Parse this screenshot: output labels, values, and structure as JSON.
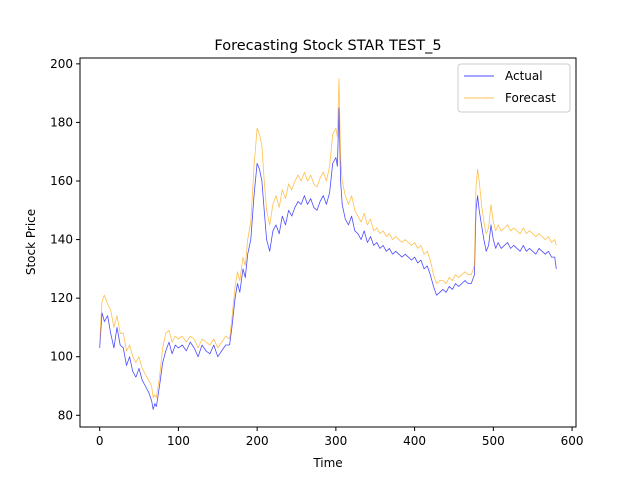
{
  "chart_data": {
    "type": "line",
    "title": "Forecasting Stock STAR TEST_5",
    "xlabel": "Time",
    "ylabel": "Stock Price",
    "xlim": [
      -25,
      605
    ],
    "ylim": [
      76,
      202
    ],
    "xticks": [
      0,
      100,
      200,
      300,
      400,
      500,
      600
    ],
    "yticks": [
      80,
      100,
      120,
      140,
      160,
      180,
      200
    ],
    "grid": false,
    "legend_position": "top-right",
    "series": [
      {
        "name": "Actual",
        "color": "#0000ff",
        "points": [
          [
            0,
            103
          ],
          [
            3,
            115
          ],
          [
            6,
            112
          ],
          [
            10,
            114
          ],
          [
            14,
            108
          ],
          [
            18,
            103
          ],
          [
            22,
            110
          ],
          [
            26,
            104
          ],
          [
            30,
            103
          ],
          [
            34,
            97
          ],
          [
            38,
            100
          ],
          [
            42,
            95
          ],
          [
            46,
            93
          ],
          [
            50,
            96
          ],
          [
            54,
            92
          ],
          [
            58,
            90
          ],
          [
            62,
            88
          ],
          [
            66,
            85
          ],
          [
            68,
            82
          ],
          [
            70,
            84
          ],
          [
            72,
            83
          ],
          [
            76,
            90
          ],
          [
            80,
            98
          ],
          [
            84,
            102
          ],
          [
            88,
            105
          ],
          [
            92,
            101
          ],
          [
            96,
            104
          ],
          [
            100,
            103
          ],
          [
            105,
            104
          ],
          [
            110,
            102
          ],
          [
            115,
            105
          ],
          [
            120,
            103
          ],
          [
            125,
            100
          ],
          [
            130,
            104
          ],
          [
            135,
            102
          ],
          [
            140,
            101
          ],
          [
            145,
            104
          ],
          [
            150,
            100
          ],
          [
            155,
            102
          ],
          [
            160,
            104
          ],
          [
            165,
            104
          ],
          [
            168,
            110
          ],
          [
            172,
            120
          ],
          [
            175,
            125
          ],
          [
            178,
            122
          ],
          [
            182,
            130
          ],
          [
            185,
            127
          ],
          [
            188,
            135
          ],
          [
            192,
            140
          ],
          [
            196,
            155
          ],
          [
            200,
            166
          ],
          [
            203,
            164
          ],
          [
            206,
            160
          ],
          [
            209,
            150
          ],
          [
            212,
            140
          ],
          [
            216,
            136
          ],
          [
            220,
            143
          ],
          [
            224,
            145
          ],
          [
            228,
            142
          ],
          [
            232,
            148
          ],
          [
            236,
            145
          ],
          [
            240,
            150
          ],
          [
            244,
            148
          ],
          [
            248,
            151
          ],
          [
            252,
            153
          ],
          [
            256,
            152
          ],
          [
            260,
            155
          ],
          [
            264,
            152
          ],
          [
            268,
            154
          ],
          [
            272,
            151
          ],
          [
            276,
            150
          ],
          [
            280,
            153
          ],
          [
            284,
            155
          ],
          [
            288,
            152
          ],
          [
            292,
            156
          ],
          [
            296,
            166
          ],
          [
            300,
            168
          ],
          [
            302,
            165
          ],
          [
            304,
            185
          ],
          [
            306,
            160
          ],
          [
            308,
            152
          ],
          [
            312,
            147
          ],
          [
            316,
            145
          ],
          [
            320,
            148
          ],
          [
            324,
            143
          ],
          [
            328,
            142
          ],
          [
            332,
            140
          ],
          [
            336,
            143
          ],
          [
            340,
            139
          ],
          [
            344,
            141
          ],
          [
            348,
            138
          ],
          [
            352,
            139
          ],
          [
            356,
            137
          ],
          [
            360,
            138
          ],
          [
            364,
            136
          ],
          [
            368,
            137
          ],
          [
            372,
            135
          ],
          [
            376,
            136
          ],
          [
            380,
            135
          ],
          [
            384,
            134
          ],
          [
            388,
            135
          ],
          [
            392,
            134
          ],
          [
            396,
            133
          ],
          [
            400,
            134
          ],
          [
            404,
            132
          ],
          [
            408,
            133
          ],
          [
            412,
            130
          ],
          [
            416,
            131
          ],
          [
            420,
            128
          ],
          [
            424,
            124
          ],
          [
            428,
            121
          ],
          [
            432,
            122
          ],
          [
            436,
            123
          ],
          [
            440,
            122
          ],
          [
            444,
            124
          ],
          [
            448,
            123
          ],
          [
            452,
            125
          ],
          [
            456,
            124
          ],
          [
            460,
            125
          ],
          [
            464,
            126
          ],
          [
            468,
            125
          ],
          [
            472,
            125
          ],
          [
            476,
            128
          ],
          [
            478,
            150
          ],
          [
            480,
            155
          ],
          [
            482,
            150
          ],
          [
            485,
            145
          ],
          [
            488,
            140
          ],
          [
            491,
            136
          ],
          [
            494,
            138
          ],
          [
            497,
            145
          ],
          [
            500,
            140
          ],
          [
            503,
            137
          ],
          [
            506,
            139
          ],
          [
            510,
            137
          ],
          [
            514,
            138
          ],
          [
            518,
            139
          ],
          [
            522,
            137
          ],
          [
            526,
            138
          ],
          [
            530,
            137
          ],
          [
            534,
            136
          ],
          [
            538,
            138
          ],
          [
            542,
            136
          ],
          [
            546,
            137
          ],
          [
            550,
            136
          ],
          [
            554,
            135
          ],
          [
            558,
            137
          ],
          [
            562,
            136
          ],
          [
            566,
            135
          ],
          [
            570,
            136
          ],
          [
            574,
            134
          ],
          [
            578,
            134
          ],
          [
            580,
            130
          ]
        ]
      },
      {
        "name": "Forecast",
        "color": "#ffa500",
        "points": [
          [
            0,
            105
          ],
          [
            3,
            119
          ],
          [
            6,
            121
          ],
          [
            10,
            118
          ],
          [
            14,
            116
          ],
          [
            18,
            110
          ],
          [
            22,
            114
          ],
          [
            26,
            108
          ],
          [
            30,
            108
          ],
          [
            34,
            102
          ],
          [
            38,
            104
          ],
          [
            42,
            100
          ],
          [
            46,
            98
          ],
          [
            50,
            100
          ],
          [
            54,
            96
          ],
          [
            58,
            94
          ],
          [
            62,
            92
          ],
          [
            66,
            90
          ],
          [
            68,
            86
          ],
          [
            70,
            87
          ],
          [
            72,
            86
          ],
          [
            76,
            93
          ],
          [
            80,
            103
          ],
          [
            84,
            108
          ],
          [
            88,
            109
          ],
          [
            92,
            105
          ],
          [
            96,
            107
          ],
          [
            100,
            106
          ],
          [
            105,
            107
          ],
          [
            110,
            105
          ],
          [
            115,
            107
          ],
          [
            120,
            106
          ],
          [
            125,
            103
          ],
          [
            130,
            106
          ],
          [
            135,
            105
          ],
          [
            140,
            104
          ],
          [
            145,
            106
          ],
          [
            150,
            103
          ],
          [
            155,
            105
          ],
          [
            160,
            107
          ],
          [
            165,
            106
          ],
          [
            168,
            113
          ],
          [
            172,
            124
          ],
          [
            175,
            129
          ],
          [
            178,
            126
          ],
          [
            182,
            134
          ],
          [
            185,
            131
          ],
          [
            188,
            140
          ],
          [
            192,
            146
          ],
          [
            196,
            165
          ],
          [
            200,
            178
          ],
          [
            203,
            176
          ],
          [
            206,
            172
          ],
          [
            209,
            160
          ],
          [
            212,
            150
          ],
          [
            216,
            145
          ],
          [
            220,
            152
          ],
          [
            224,
            155
          ],
          [
            228,
            151
          ],
          [
            232,
            157
          ],
          [
            236,
            154
          ],
          [
            240,
            159
          ],
          [
            244,
            157
          ],
          [
            248,
            160
          ],
          [
            252,
            162
          ],
          [
            256,
            160
          ],
          [
            260,
            163
          ],
          [
            264,
            160
          ],
          [
            268,
            162
          ],
          [
            272,
            159
          ],
          [
            276,
            158
          ],
          [
            280,
            161
          ],
          [
            284,
            163
          ],
          [
            288,
            160
          ],
          [
            292,
            165
          ],
          [
            296,
            176
          ],
          [
            300,
            178
          ],
          [
            302,
            175
          ],
          [
            304,
            195
          ],
          [
            306,
            168
          ],
          [
            308,
            160
          ],
          [
            312,
            155
          ],
          [
            316,
            152
          ],
          [
            320,
            155
          ],
          [
            324,
            150
          ],
          [
            328,
            148
          ],
          [
            332,
            146
          ],
          [
            336,
            149
          ],
          [
            340,
            145
          ],
          [
            344,
            147
          ],
          [
            348,
            143
          ],
          [
            352,
            144
          ],
          [
            356,
            142
          ],
          [
            360,
            143
          ],
          [
            364,
            141
          ],
          [
            368,
            142
          ],
          [
            372,
            140
          ],
          [
            376,
            141
          ],
          [
            380,
            140
          ],
          [
            384,
            139
          ],
          [
            388,
            140
          ],
          [
            392,
            139
          ],
          [
            396,
            138
          ],
          [
            400,
            139
          ],
          [
            404,
            137
          ],
          [
            408,
            138
          ],
          [
            412,
            135
          ],
          [
            416,
            136
          ],
          [
            420,
            133
          ],
          [
            424,
            128
          ],
          [
            428,
            125
          ],
          [
            432,
            126
          ],
          [
            436,
            126
          ],
          [
            440,
            125
          ],
          [
            444,
            127
          ],
          [
            448,
            126
          ],
          [
            452,
            128
          ],
          [
            456,
            127
          ],
          [
            460,
            128
          ],
          [
            464,
            129
          ],
          [
            468,
            128
          ],
          [
            472,
            128
          ],
          [
            476,
            131
          ],
          [
            478,
            158
          ],
          [
            480,
            164
          ],
          [
            482,
            160
          ],
          [
            485,
            152
          ],
          [
            488,
            146
          ],
          [
            491,
            142
          ],
          [
            494,
            144
          ],
          [
            497,
            152
          ],
          [
            500,
            146
          ],
          [
            503,
            143
          ],
          [
            506,
            145
          ],
          [
            510,
            143
          ],
          [
            514,
            144
          ],
          [
            518,
            145
          ],
          [
            522,
            143
          ],
          [
            526,
            144
          ],
          [
            530,
            143
          ],
          [
            534,
            142
          ],
          [
            538,
            144
          ],
          [
            542,
            142
          ],
          [
            546,
            143
          ],
          [
            550,
            142
          ],
          [
            554,
            141
          ],
          [
            558,
            142
          ],
          [
            562,
            141
          ],
          [
            566,
            140
          ],
          [
            570,
            141
          ],
          [
            574,
            139
          ],
          [
            578,
            140
          ],
          [
            580,
            138
          ]
        ]
      }
    ]
  }
}
